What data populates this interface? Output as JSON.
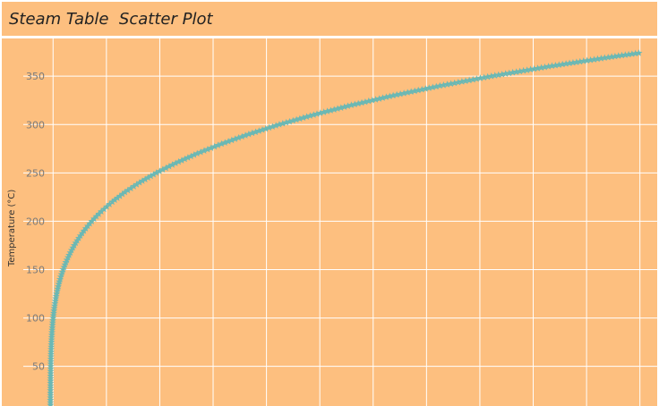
{
  "title": "Steam Table  Scatter Plot",
  "chart_data": {
    "type": "scatter",
    "title": "Steam Table  Scatter Plot",
    "xlabel": "",
    "ylabel": "Temperature (°C)",
    "xlim": [
      -1,
      22.5
    ],
    "ylim": [
      9,
      389
    ],
    "y_ticks": [
      50,
      100,
      150,
      200,
      250,
      300,
      350
    ],
    "x_grid": [
      0.1,
      2.1,
      4.1,
      6.1,
      8.1,
      10.1,
      12.1,
      14.1,
      16.1,
      18.1,
      20.1,
      22.1
    ],
    "grid": true,
    "marker": "star",
    "series": [
      {
        "color": "#6bb8b4",
        "x": [
          0.001,
          0.0017,
          0.0023,
          0.0032,
          0.0042,
          0.0056,
          0.0074,
          0.0097,
          0.0123,
          0.0158,
          0.0199,
          0.0248,
          0.0312,
          0.0386,
          0.0474,
          0.0578,
          0.0701,
          0.0846,
          0.1013,
          0.1209,
          0.1434,
          0.1692,
          0.1986,
          0.2321,
          0.2701,
          0.313,
          0.3613,
          0.4154,
          0.4758,
          0.5431,
          0.6178,
          0.7004,
          0.7916,
          0.892,
          1.002,
          1.123,
          1.255,
          1.398,
          1.554,
          1.722,
          1.907,
          2.319,
          2.795,
          3.344,
          3.973,
          4.692,
          5.503,
          6.416,
          7.438,
          8.581,
          9.865,
          11.28,
          12.85,
          14.6,
          16.53,
          18.67,
          21.04,
          22.06
        ],
        "y": [
          10,
          15,
          20,
          25,
          30,
          35,
          40,
          45,
          50,
          55,
          60,
          65,
          70,
          75,
          80,
          85,
          90,
          95,
          100,
          105,
          110,
          115,
          120,
          125,
          130,
          135,
          140,
          145,
          150,
          155,
          160,
          165,
          170,
          175,
          180,
          185,
          190,
          195,
          200,
          205,
          210,
          220,
          230,
          240,
          250,
          260,
          270,
          280,
          290,
          300,
          310,
          320,
          330,
          340,
          350,
          360,
          370,
          373.9
        ]
      }
    ]
  }
}
